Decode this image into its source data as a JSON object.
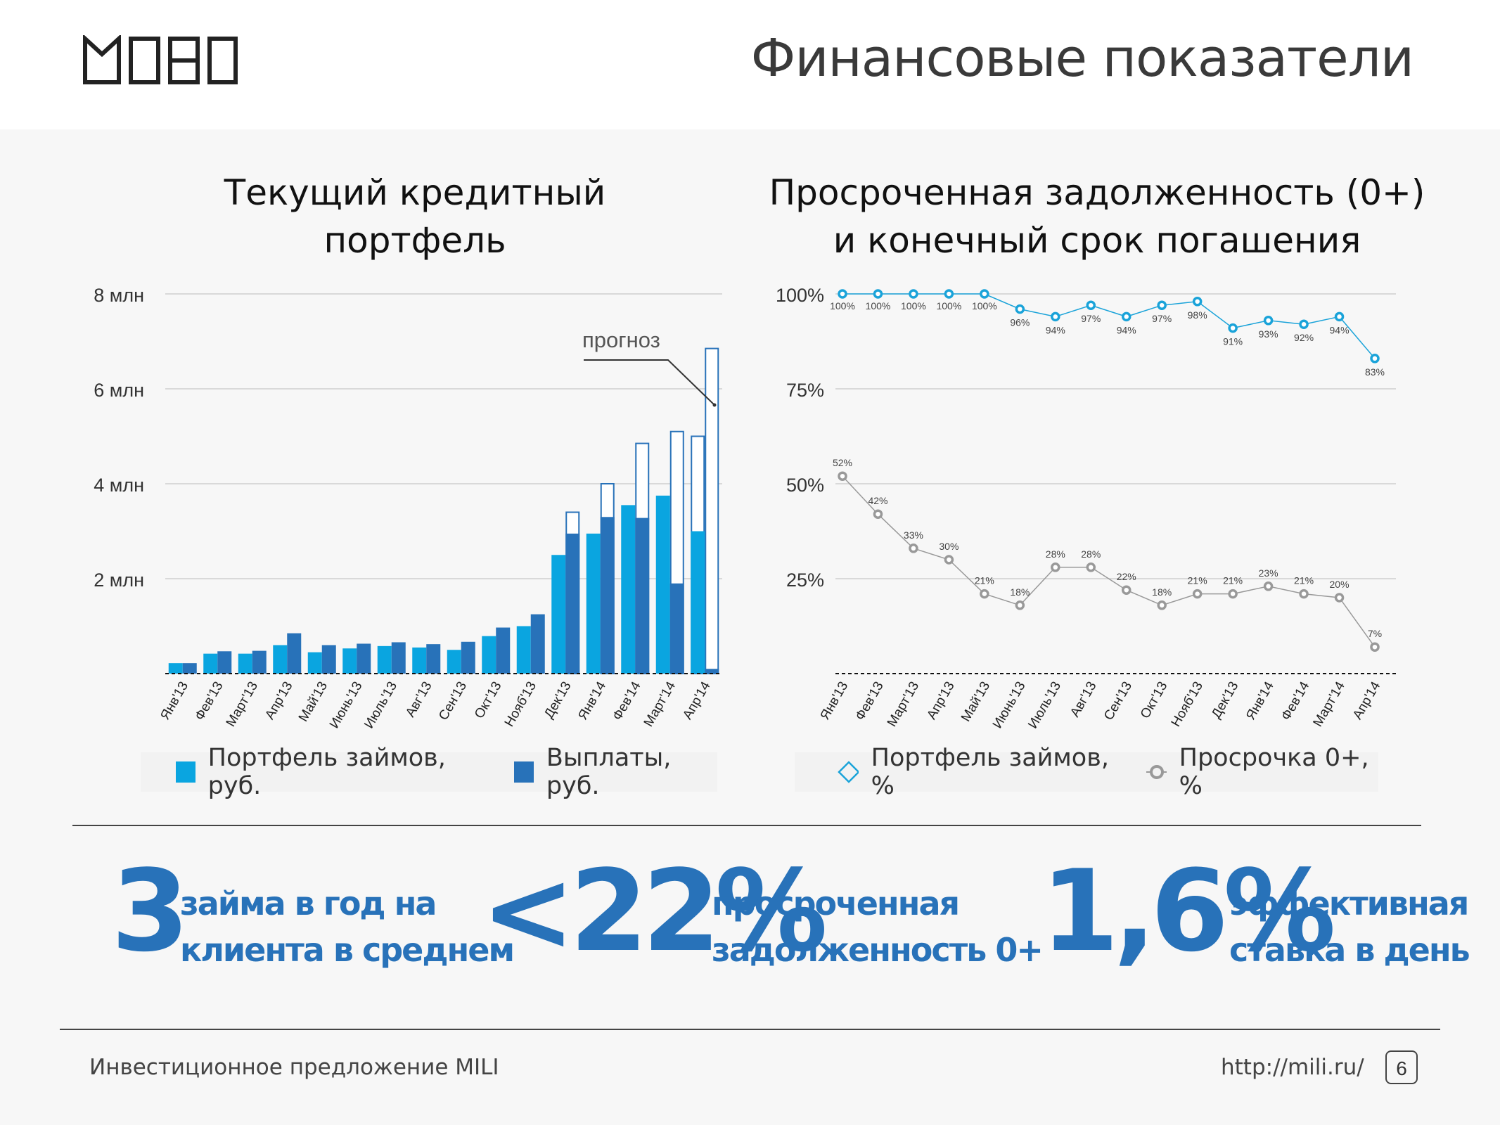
{
  "header": {
    "title": "Финансовые показатели",
    "logo_text": "MILI"
  },
  "colors": {
    "portfolio_light": "#0aa5e0",
    "payments_dark": "#2872b9",
    "forecast_outline": "#2872b9",
    "line_blue": "#1aa3d9",
    "line_gray": "#999999",
    "accent": "#2872b9"
  },
  "chart_data": [
    {
      "type": "bar",
      "title": "Текущий кредитный\nпортфель",
      "categories": [
        "Янв'13",
        "Фев'13",
        "Март'13",
        "Апр'13",
        "Май'13",
        "Июнь'13",
        "Июль'13",
        "Авг'13",
        "Сен'13",
        "Окт'13",
        "Нояб'13",
        "Дек'13",
        "Янв'14",
        "Фев'14",
        "Март'14",
        "Апр'14"
      ],
      "y_ticks": [
        "2 млн",
        "4 млн",
        "6 млн",
        "8 млн"
      ],
      "ylim": [
        0,
        8000000
      ],
      "grid": true,
      "series": [
        {
          "name": "Портфель займов, руб.",
          "values": [
            220000,
            420000,
            420000,
            600000,
            450000,
            530000,
            580000,
            550000,
            500000,
            790000,
            1000000,
            2500000,
            2950000,
            3550000,
            3750000,
            3000000
          ],
          "forecast": [
            null,
            null,
            null,
            null,
            null,
            null,
            null,
            null,
            null,
            null,
            null,
            null,
            null,
            null,
            null,
            5000000
          ]
        },
        {
          "name": "Выплаты, руб.",
          "values": [
            220000,
            470000,
            480000,
            850000,
            600000,
            630000,
            660000,
            620000,
            670000,
            970000,
            1250000,
            2950000,
            3300000,
            3280000,
            1900000,
            100000
          ],
          "forecast": [
            null,
            null,
            null,
            null,
            null,
            null,
            null,
            null,
            null,
            null,
            null,
            3400000,
            4000000,
            4850000,
            5100000,
            6850000
          ]
        }
      ],
      "annotation": "прогноз",
      "legend_position": "bottom"
    },
    {
      "type": "line",
      "title": "Просроченная задолженность (0+)\nи конечный срок погашения",
      "categories": [
        "Янв'13",
        "Фев'13",
        "Март'13",
        "Апр'13",
        "Май'13",
        "Июнь'13",
        "Июль'13",
        "Авг'13",
        "Сен'13",
        "Окт'13",
        "Нояб'13",
        "Дек'13",
        "Янв'14",
        "Фев'14",
        "Март'14",
        "Апр'14"
      ],
      "y_ticks": [
        "25%",
        "50%",
        "75%",
        "100%"
      ],
      "ylim": [
        0,
        100
      ],
      "grid": true,
      "series": [
        {
          "name": "Портфель займов, %",
          "values": [
            100,
            100,
            100,
            100,
            100,
            96,
            94,
            97,
            94,
            97,
            98,
            91,
            93,
            92,
            94,
            83
          ],
          "labels": [
            "100%",
            "100%",
            "100%",
            "100%",
            "100%",
            "96%",
            "94%",
            "97%",
            "94%",
            "97%",
            "98%",
            "91%",
            "93%",
            "92%",
            "94%",
            "83%"
          ]
        },
        {
          "name": "Просрочка 0+, %",
          "values": [
            52,
            42,
            33,
            30,
            21,
            18,
            28,
            28,
            22,
            18,
            21,
            21,
            23,
            21,
            20,
            7
          ],
          "labels": [
            "52%",
            "42%",
            "33%",
            "30%",
            "21%",
            "18%",
            "28%",
            "28%",
            "22%",
            "18%",
            "21%",
            "21%",
            "23%",
            "21%",
            "20%",
            "7%"
          ]
        }
      ],
      "legend_position": "bottom"
    }
  ],
  "stats": [
    {
      "big": "3",
      "text": "займа в год на\nклиента в среднем"
    },
    {
      "big": "<22%",
      "text": "просроченная\nзадолженность 0+"
    },
    {
      "big": "1,6%",
      "text": "эффективная\nставка в день"
    }
  ],
  "footer": {
    "text": "Инвестиционное предложение MILI",
    "url": "http://mili.ru/",
    "page": "6"
  }
}
